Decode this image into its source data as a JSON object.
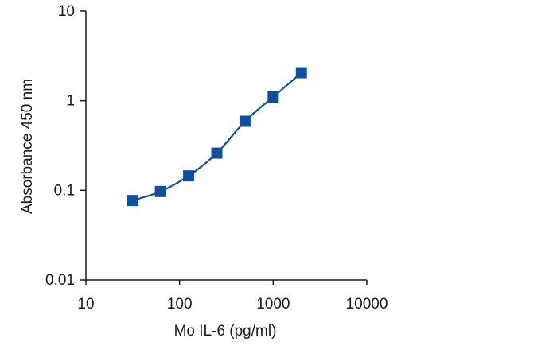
{
  "chart_data": {
    "type": "line",
    "xlabel": "Mo IL-6 (pg/ml)",
    "ylabel": "Absorbance 450 nm",
    "xscale": "log",
    "yscale": "log",
    "xlim": [
      10,
      10000
    ],
    "ylim": [
      0.01,
      10
    ],
    "x_ticks": [
      "10",
      "100",
      "1000",
      "10000"
    ],
    "y_ticks": [
      "0.01",
      "0.1",
      "1",
      "10"
    ],
    "grid": false,
    "marker": "square",
    "series": [
      {
        "x": [
          31.25,
          62.5,
          125,
          250,
          500,
          1000,
          2000
        ],
        "y": [
          0.077,
          0.097,
          0.145,
          0.26,
          0.59,
          1.1,
          2.05
        ],
        "color": "#0f4f9c"
      }
    ]
  }
}
